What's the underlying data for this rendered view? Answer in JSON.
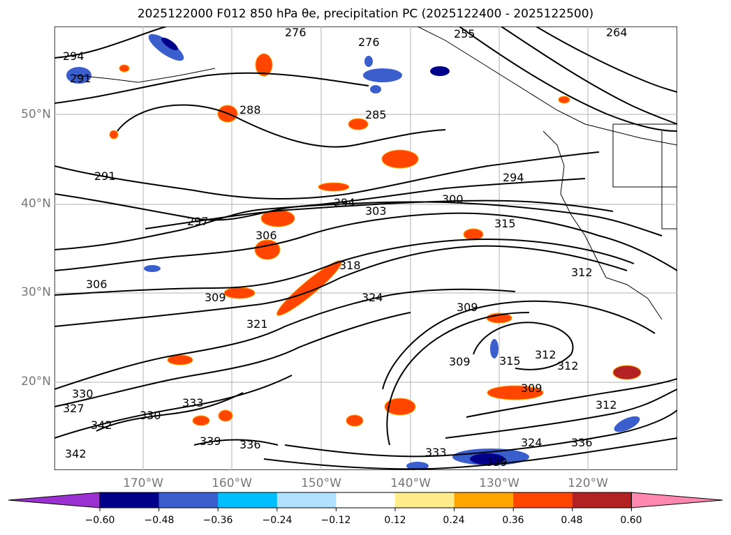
{
  "title": "2025122000 F012 850 hPa θe, precipitation PC (2025122400 - 2025122500)",
  "y_labels": [
    "50°N",
    "40°N",
    "30°N",
    "20°N"
  ],
  "x_labels": [
    "170°W",
    "160°W",
    "150°W",
    "140°W",
    "130°W",
    "120°W"
  ],
  "contour_labels": [
    "264",
    "255",
    "276",
    "276",
    "294",
    "291",
    "285",
    "288",
    "291",
    "294",
    "294",
    "300",
    "303",
    "297",
    "306",
    "315",
    "312",
    "318",
    "309",
    "306",
    "309",
    "324",
    "321",
    "309",
    "315",
    "312",
    "312",
    "309",
    "312",
    "330",
    "327",
    "330",
    "333",
    "342",
    "339",
    "336",
    "333",
    "339",
    "324",
    "336",
    "342"
  ],
  "colorbar": {
    "colors": [
      "#9b30d0",
      "#00008b",
      "#3a5fcd",
      "#00bfff",
      "#b0e2ff",
      "#ffffff",
      "#ffec8b",
      "#ffa500",
      "#ff4500",
      "#b22222",
      "#ff88b0"
    ],
    "tick_labels": [
      "−0.60",
      "−0.48",
      "−0.36",
      "−0.24",
      "−0.12",
      "0.12",
      "0.24",
      "0.36",
      "0.48",
      "0.60"
    ]
  }
}
